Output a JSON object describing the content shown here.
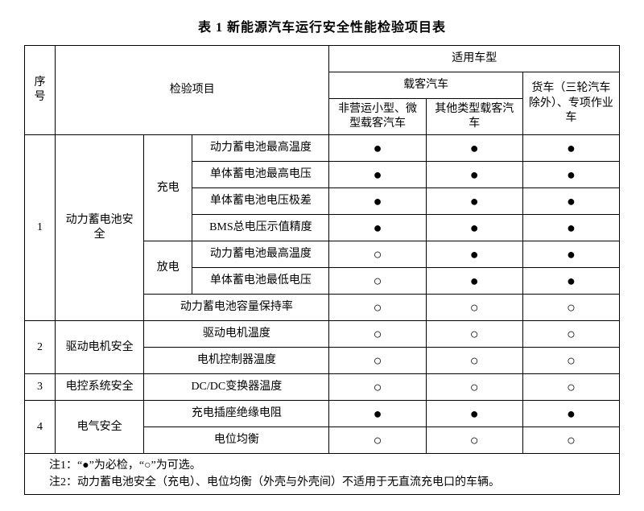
{
  "title": "表 1 新能源汽车运行安全性能检验项目表",
  "headers": {
    "seq": "序\n号",
    "inspection": "检验项目",
    "vehicle_type": "适用车型",
    "passenger": "载客汽车",
    "truck": "货车（三轮汽车除外）、专项作业车",
    "non_operating": "非营运小型、微型载客汽车",
    "other_passenger": "其他类型载客汽车"
  },
  "mark": {
    "full": "●",
    "empty": "○"
  },
  "rows": [
    {
      "num": "1",
      "cat": "动力蓄电池安全",
      "sub": "充电",
      "item": "动力蓄电池最高温度",
      "v1": "●",
      "v2": "●",
      "v3": "●"
    },
    {
      "item": "单体蓄电池最高电压",
      "v1": "●",
      "v2": "●",
      "v3": "●"
    },
    {
      "item": "单体蓄电池电压极差",
      "v1": "●",
      "v2": "●",
      "v3": "●"
    },
    {
      "item": "BMS总电压示值精度",
      "v1": "●",
      "v2": "●",
      "v3": "●"
    },
    {
      "sub": "放电",
      "item": "动力蓄电池最高温度",
      "v1": "○",
      "v2": "●",
      "v3": "●"
    },
    {
      "item": "单体蓄电池最低电压",
      "v1": "○",
      "v2": "●",
      "v3": "●"
    },
    {
      "item": "动力蓄电池容量保持率",
      "v1": "○",
      "v2": "○",
      "v3": "○"
    },
    {
      "num": "2",
      "cat": "驱动电机安全",
      "item": "驱动电机温度",
      "v1": "○",
      "v2": "○",
      "v3": "○"
    },
    {
      "item": "电机控制器温度",
      "v1": "○",
      "v2": "○",
      "v3": "○"
    },
    {
      "num": "3",
      "cat": "电控系统安全",
      "item": "DC/DC变换器温度",
      "v1": "○",
      "v2": "○",
      "v3": "○"
    },
    {
      "num": "4",
      "cat": "电气安全",
      "item": "充电插座绝缘电阻",
      "v1": "●",
      "v2": "●",
      "v3": "●"
    },
    {
      "item": "电位均衡",
      "v1": "○",
      "v2": "○",
      "v3": "○"
    }
  ],
  "notes": {
    "n1": "注1：“●”为必检，“○”为可选。",
    "n2": "注2：动力蓄电池安全（充电）、电位均衡（外壳与外壳间）不适用于无直流充电口的车辆。"
  }
}
